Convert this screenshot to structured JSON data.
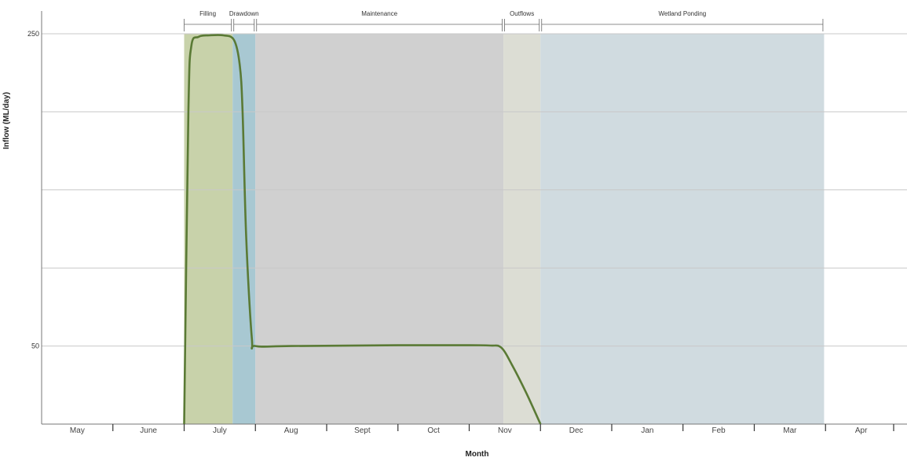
{
  "chart_data": {
    "type": "area",
    "title": "",
    "xlabel": "Month",
    "ylabel": "Inflow (ML/day)",
    "months": [
      "May",
      "June",
      "July",
      "Aug",
      "Sept",
      "Oct",
      "Nov",
      "Dec",
      "Jan",
      "Feb",
      "Mar",
      "Apr"
    ],
    "x_range": [
      0,
      12
    ],
    "ylim": [
      0,
      250
    ],
    "y_ticks": [
      50,
      250
    ],
    "grid": true,
    "phases": [
      {
        "name": "Filling",
        "start": 2.0,
        "end": 2.68,
        "color": "#c8d2aa"
      },
      {
        "name": "Drawdown",
        "start": 2.68,
        "end": 3.0,
        "color": "#a8c8d2"
      },
      {
        "name": "Maintenance",
        "start": 3.0,
        "end": 6.48,
        "color": "#d0d0d0"
      },
      {
        "name": "Outflows",
        "start": 6.48,
        "end": 7.0,
        "color": "#dcddd4"
      },
      {
        "name": "Wetland Ponding",
        "start": 7.0,
        "end": 10.98,
        "color": "#d0dbe0"
      }
    ],
    "series": [
      {
        "color": "#5a7a35",
        "x": [
          2.0,
          2.06,
          2.1,
          2.2,
          2.35,
          2.55,
          2.7,
          2.78,
          2.82,
          2.87,
          2.95,
          3.0,
          3.5,
          5.0,
          6.0,
          6.3,
          6.45,
          6.6,
          6.8,
          7.0
        ],
        "y": [
          0,
          200,
          242,
          248,
          249,
          249,
          246,
          230,
          200,
          120,
          55,
          50,
          50,
          50.5,
          50.5,
          50.3,
          49,
          38,
          20,
          0
        ]
      }
    ]
  }
}
